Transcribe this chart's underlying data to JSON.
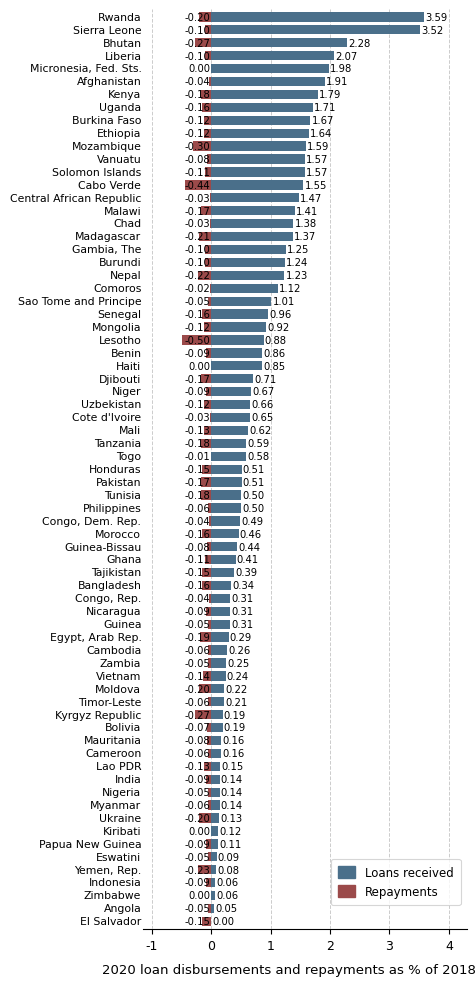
{
  "countries": [
    "Rwanda",
    "Sierra Leone",
    "Bhutan",
    "Liberia",
    "Micronesia, Fed. Sts.",
    "Afghanistan",
    "Kenya",
    "Uganda",
    "Burkina Faso",
    "Ethiopia",
    "Mozambique",
    "Vanuatu",
    "Solomon Islands",
    "Cabo Verde",
    "Central African Republic",
    "Malawi",
    "Chad",
    "Madagascar",
    "Gambia, The",
    "Burundi",
    "Nepal",
    "Comoros",
    "Sao Tome and Principe",
    "Senegal",
    "Mongolia",
    "Lesotho",
    "Benin",
    "Haiti",
    "Djibouti",
    "Niger",
    "Uzbekistan",
    "Cote d'Ivoire",
    "Mali",
    "Tanzania",
    "Togo",
    "Honduras",
    "Pakistan",
    "Tunisia",
    "Philippines",
    "Congo, Dem. Rep.",
    "Morocco",
    "Guinea-Bissau",
    "Ghana",
    "Tajikistan",
    "Bangladesh",
    "Congo, Rep.",
    "Nicaragua",
    "Guinea",
    "Egypt, Arab Rep.",
    "Cambodia",
    "Zambia",
    "Vietnam",
    "Moldova",
    "Timor-Leste",
    "Kyrgyz Republic",
    "Bolivia",
    "Mauritania",
    "Cameroon",
    "Lao PDR",
    "India",
    "Nigeria",
    "Myanmar",
    "Ukraine",
    "Kiribati",
    "Papua New Guinea",
    "Eswatini",
    "Yemen, Rep.",
    "Indonesia",
    "Zimbabwe",
    "Angola",
    "El Salvador"
  ],
  "loans": [
    3.59,
    3.52,
    2.28,
    2.07,
    1.98,
    1.91,
    1.79,
    1.71,
    1.67,
    1.64,
    1.59,
    1.57,
    1.57,
    1.55,
    1.47,
    1.41,
    1.38,
    1.37,
    1.25,
    1.24,
    1.23,
    1.12,
    1.01,
    0.96,
    0.92,
    0.88,
    0.86,
    0.85,
    0.71,
    0.67,
    0.66,
    0.65,
    0.62,
    0.59,
    0.58,
    0.51,
    0.51,
    0.5,
    0.5,
    0.49,
    0.46,
    0.44,
    0.41,
    0.39,
    0.34,
    0.31,
    0.31,
    0.31,
    0.29,
    0.26,
    0.25,
    0.24,
    0.22,
    0.21,
    0.19,
    0.19,
    0.16,
    0.16,
    0.15,
    0.14,
    0.14,
    0.14,
    0.13,
    0.12,
    0.11,
    0.09,
    0.08,
    0.06,
    0.06,
    0.05,
    0.0
  ],
  "repayments": [
    -0.2,
    -0.1,
    -0.27,
    -0.1,
    0.0,
    -0.04,
    -0.18,
    -0.16,
    -0.12,
    -0.12,
    -0.3,
    -0.08,
    -0.11,
    -0.44,
    -0.03,
    -0.17,
    -0.03,
    -0.21,
    -0.1,
    -0.1,
    -0.22,
    -0.02,
    -0.05,
    -0.16,
    -0.12,
    -0.5,
    -0.09,
    0.0,
    -0.17,
    -0.09,
    -0.12,
    -0.03,
    -0.13,
    -0.18,
    -0.01,
    -0.15,
    -0.17,
    -0.18,
    -0.06,
    -0.04,
    -0.16,
    -0.08,
    -0.11,
    -0.15,
    -0.16,
    -0.04,
    -0.09,
    -0.05,
    -0.19,
    -0.06,
    -0.05,
    -0.14,
    -0.2,
    -0.06,
    -0.27,
    -0.07,
    -0.08,
    -0.06,
    -0.13,
    -0.09,
    -0.05,
    -0.06,
    -0.2,
    0.0,
    -0.09,
    -0.05,
    -0.23,
    -0.09,
    0.0,
    -0.05,
    -0.15
  ],
  "loan_color": "#4a6f8a",
  "repayment_color": "#9b4a4a",
  "title": "2020 loan disbursements and repayments as % of 2018 GDP",
  "xlim": [
    -1.15,
    4.3
  ],
  "xticks": [
    -1,
    0,
    1,
    2,
    3,
    4
  ],
  "bar_height": 0.72,
  "country_fontsize": 7.8,
  "value_fontsize": 7.2,
  "title_fontsize": 9.5,
  "legend_fontsize": 8.5
}
